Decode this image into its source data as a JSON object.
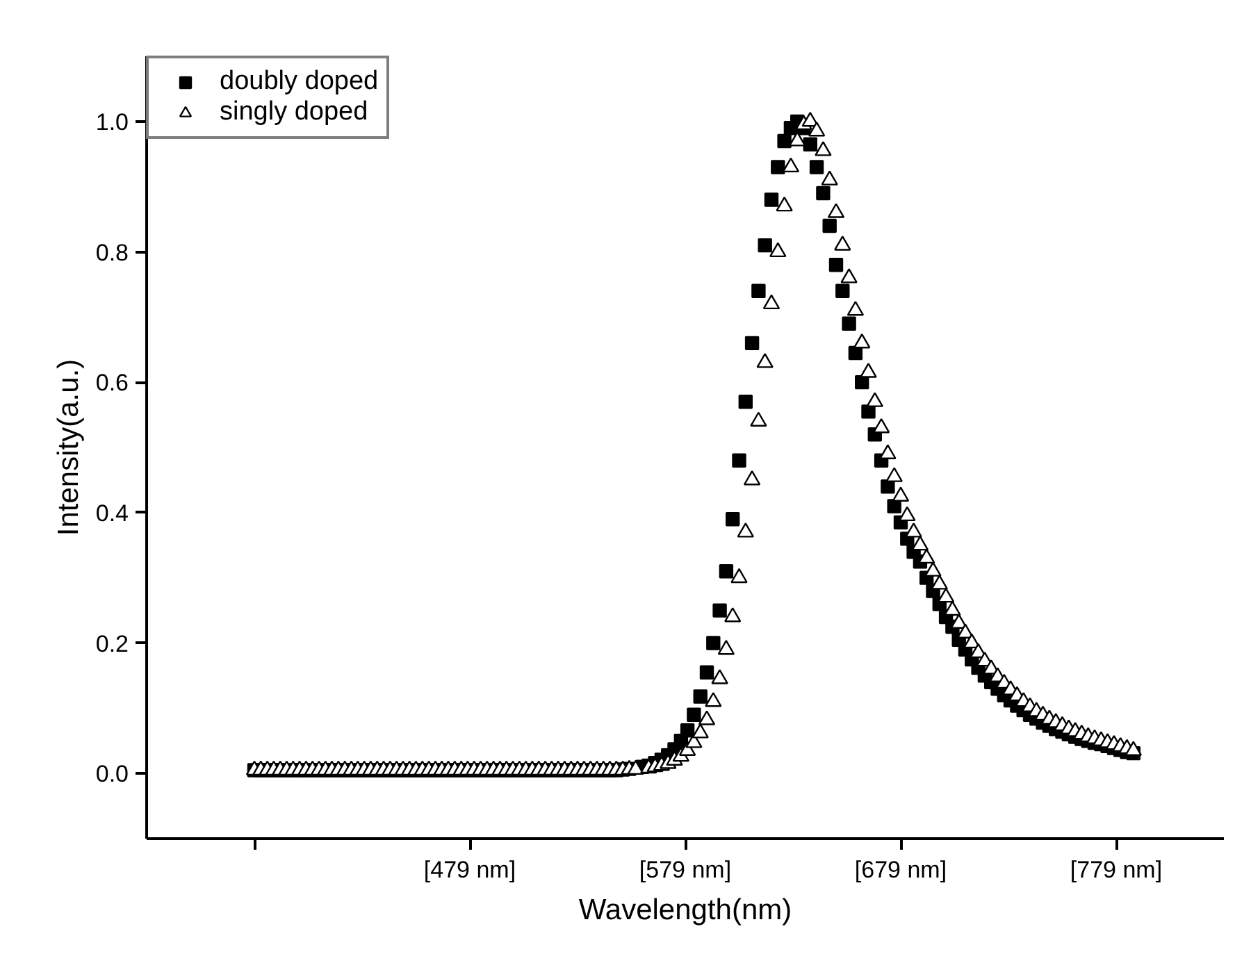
{
  "chart_data": {
    "type": "scatter",
    "xlabel": "Wavelength(nm)",
    "ylabel": "Intensity(a.u.)",
    "xlim": [
      329,
      829
    ],
    "ylim": [
      -0.1,
      1.1
    ],
    "xticks": [
      {
        "value": 379,
        "label": null
      },
      {
        "value": 479,
        "label": "[479 nm]"
      },
      {
        "value": 579,
        "label": "[579 nm]"
      },
      {
        "value": 679,
        "label": "[679 nm]"
      },
      {
        "value": 779,
        "label": "[779 nm]"
      }
    ],
    "yticks": [
      {
        "value": 0,
        "label": "0.0"
      },
      {
        "value": 0.2,
        "label": "0.2"
      },
      {
        "value": 0.4,
        "label": "0.4"
      },
      {
        "value": 0.6,
        "label": "0.6"
      },
      {
        "value": 0.8,
        "label": "0.8"
      },
      {
        "value": 1.0,
        "label": "1.0"
      }
    ],
    "x": [
      379,
      382,
      385,
      388,
      391,
      394,
      397,
      400,
      403,
      406,
      409,
      412,
      415,
      418,
      421,
      424,
      427,
      430,
      433,
      436,
      439,
      442,
      445,
      448,
      451,
      454,
      457,
      460,
      463,
      466,
      469,
      472,
      475,
      478,
      481,
      484,
      487,
      490,
      493,
      496,
      499,
      502,
      505,
      508,
      511,
      514,
      517,
      520,
      523,
      526,
      529,
      532,
      535,
      538,
      541,
      544,
      547,
      550,
      553,
      556,
      559,
      562,
      565,
      568,
      571,
      574,
      577,
      580,
      583,
      586,
      589,
      592,
      595,
      598,
      601,
      604,
      607,
      610,
      613,
      616,
      619,
      622,
      625,
      628,
      631,
      634,
      637,
      640,
      643,
      646,
      649,
      652,
      655,
      658,
      661,
      664,
      667,
      670,
      673,
      676,
      679,
      682,
      685,
      688,
      691,
      694,
      697,
      700,
      703,
      706,
      709,
      712,
      715,
      718,
      721,
      724,
      727,
      730,
      733,
      736,
      739,
      742,
      745,
      748,
      751,
      754,
      757,
      760,
      763,
      766,
      769,
      772,
      775,
      778,
      781,
      784,
      787
    ],
    "grid": false,
    "legend": "top left",
    "series": [
      {
        "name": "doubly doped",
        "color": "#000000",
        "marker": "square",
        "values": [
          0.005,
          0.005,
          0.005,
          0.005,
          0.005,
          0.005,
          0.005,
          0.005,
          0.005,
          0.005,
          0.005,
          0.005,
          0.005,
          0.005,
          0.005,
          0.005,
          0.005,
          0.005,
          0.005,
          0.005,
          0.005,
          0.005,
          0.005,
          0.005,
          0.005,
          0.005,
          0.005,
          0.005,
          0.005,
          0.005,
          0.005,
          0.005,
          0.005,
          0.005,
          0.005,
          0.005,
          0.005,
          0.005,
          0.005,
          0.005,
          0.005,
          0.005,
          0.005,
          0.005,
          0.005,
          0.005,
          0.005,
          0.005,
          0.005,
          0.005,
          0.005,
          0.005,
          0.005,
          0.005,
          0.005,
          0.005,
          0.005,
          0.006,
          0.007,
          null,
          0.01,
          0.012,
          0.016,
          0.021,
          0.028,
          0.037,
          0.05,
          0.066,
          0.09,
          0.118,
          0.155,
          0.2,
          0.25,
          0.31,
          0.39,
          0.48,
          0.57,
          0.66,
          0.74,
          0.81,
          0.88,
          0.93,
          0.97,
          0.99,
          1.0,
          0.99,
          0.965,
          0.93,
          0.89,
          0.84,
          0.78,
          0.74,
          0.69,
          0.645,
          0.6,
          0.555,
          0.52,
          0.48,
          0.44,
          0.41,
          0.385,
          0.36,
          0.34,
          0.325,
          0.3,
          0.28,
          0.26,
          0.24,
          0.225,
          0.205,
          0.19,
          0.175,
          0.162,
          0.15,
          0.14,
          0.13,
          0.12,
          0.112,
          0.104,
          0.097,
          0.09,
          0.084,
          0.078,
          0.073,
          0.068,
          0.064,
          0.06,
          0.056,
          0.053,
          0.05,
          0.047,
          0.045,
          0.042,
          0.039,
          0.036,
          0.033,
          0.031
        ]
      },
      {
        "name": "singly doped",
        "color": "#000000",
        "marker": "triangle",
        "values": [
          0.005,
          0.005,
          0.005,
          0.005,
          0.005,
          0.005,
          0.005,
          0.005,
          0.005,
          0.005,
          0.005,
          0.005,
          0.005,
          0.005,
          0.005,
          0.005,
          0.005,
          0.005,
          0.005,
          0.005,
          0.005,
          0.005,
          0.005,
          0.005,
          0.005,
          0.005,
          0.005,
          0.005,
          0.005,
          0.005,
          0.005,
          0.005,
          0.005,
          0.005,
          0.005,
          0.005,
          0.005,
          0.005,
          0.005,
          0.005,
          0.005,
          0.005,
          0.005,
          0.005,
          0.005,
          0.005,
          0.005,
          0.005,
          0.005,
          0.005,
          0.005,
          0.005,
          0.005,
          0.005,
          0.005,
          0.005,
          0.005,
          0.005,
          0.006,
          0.006,
          null,
          0.008,
          0.01,
          0.012,
          0.015,
          0.02,
          0.026,
          0.035,
          0.047,
          0.062,
          0.082,
          0.11,
          0.145,
          0.19,
          0.24,
          0.3,
          0.37,
          0.45,
          0.54,
          0.63,
          0.72,
          0.8,
          0.87,
          0.93,
          0.97,
          0.995,
          1.0,
          0.985,
          0.955,
          0.91,
          0.86,
          0.81,
          0.76,
          0.71,
          0.66,
          0.615,
          0.57,
          0.53,
          0.49,
          0.455,
          0.425,
          0.395,
          0.37,
          0.35,
          0.33,
          0.31,
          0.29,
          0.27,
          0.25,
          0.23,
          0.215,
          0.2,
          0.185,
          0.172,
          0.16,
          0.148,
          0.138,
          0.128,
          0.119,
          0.11,
          0.102,
          0.095,
          0.089,
          0.083,
          0.078,
          0.073,
          0.068,
          0.064,
          0.06,
          0.056,
          0.053,
          0.05,
          0.047,
          0.044,
          0.041,
          0.038,
          0.035
        ]
      }
    ]
  }
}
